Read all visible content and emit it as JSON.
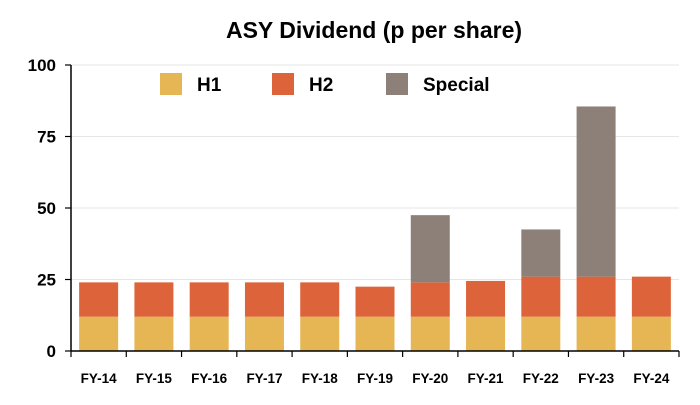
{
  "chart_data": {
    "type": "bar",
    "stacked": true,
    "title": "ASY Dividend (p per share)",
    "xlabel": "",
    "ylabel": "",
    "categories": [
      "FY-14",
      "FY-15",
      "FY-16",
      "FY-17",
      "FY-18",
      "FY-19",
      "FY-20",
      "FY-21",
      "FY-22",
      "FY-23",
      "FY-24"
    ],
    "series": [
      {
        "name": "H1",
        "color": "#e6b655",
        "values": [
          12,
          12,
          12,
          12,
          12,
          12,
          12,
          12,
          12,
          12,
          12
        ]
      },
      {
        "name": "H2",
        "color": "#dd643a",
        "values": [
          12,
          12,
          12,
          12,
          12,
          10.5,
          12,
          12.5,
          14,
          14,
          14
        ]
      },
      {
        "name": "Special",
        "color": "#8c8079",
        "values": [
          0,
          0,
          0,
          0,
          0,
          0,
          23.5,
          0,
          16.5,
          59.5,
          0
        ]
      }
    ],
    "ylim": [
      0,
      100
    ],
    "yticks": [
      0,
      25,
      50,
      75,
      100
    ],
    "grid": true,
    "legend_position": "top"
  }
}
